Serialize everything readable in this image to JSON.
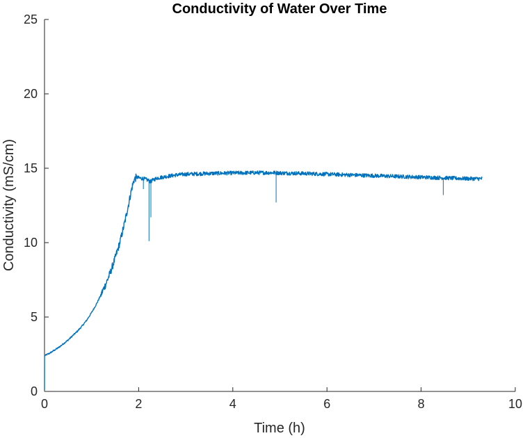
{
  "chart_data": {
    "type": "line",
    "title": "Conductivity of Water Over Time",
    "xlabel": "Time (h)",
    "ylabel": "Conductivity (mS/cm)",
    "xlim": [
      0,
      10
    ],
    "ylim": [
      0,
      25
    ],
    "xticks": [
      "0",
      "2",
      "4",
      "6",
      "8",
      "10"
    ],
    "yticks": [
      "0",
      "5",
      "10",
      "15",
      "20",
      "25"
    ],
    "grid": false,
    "legend": "none",
    "colors": {
      "series": "#0072BD",
      "axis": "#262626"
    },
    "series": [
      {
        "x": [
          0,
          0.001,
          0.002,
          0.1,
          0.2,
          0.3,
          0.4,
          0.5,
          0.6,
          0.7,
          0.8,
          0.9,
          1.0,
          1.1,
          1.2,
          1.3,
          1.4,
          1.5,
          1.6,
          1.7,
          1.8,
          1.85,
          1.9,
          1.95,
          2.0,
          2.1,
          2.2,
          2.25,
          2.3,
          2.4,
          2.6,
          2.8,
          3.0,
          3.5,
          4.0,
          4.5,
          4.9,
          5.0,
          5.5,
          6.0,
          6.5,
          7.0,
          7.5,
          8.0,
          8.5,
          9.0,
          9.3
        ],
        "y": [
          0.1,
          2.4,
          2.4,
          2.55,
          2.75,
          2.95,
          3.2,
          3.45,
          3.75,
          4.05,
          4.4,
          4.8,
          5.3,
          5.85,
          6.5,
          7.2,
          8.0,
          8.95,
          10.0,
          11.3,
          12.8,
          13.6,
          14.2,
          14.4,
          14.35,
          14.3,
          14.2,
          14.1,
          14.2,
          14.35,
          14.45,
          14.55,
          14.6,
          14.65,
          14.68,
          14.7,
          14.7,
          14.68,
          14.65,
          14.6,
          14.55,
          14.5,
          14.45,
          14.4,
          14.35,
          14.3,
          14.3
        ],
        "spikes": [
          {
            "x": 2.22,
            "y": 10.1
          },
          {
            "x": 2.26,
            "y": 11.7
          },
          {
            "x": 2.1,
            "y": 13.6
          },
          {
            "x": 4.92,
            "y": 12.7
          },
          {
            "x": 8.47,
            "y": 13.2
          }
        ]
      }
    ]
  }
}
